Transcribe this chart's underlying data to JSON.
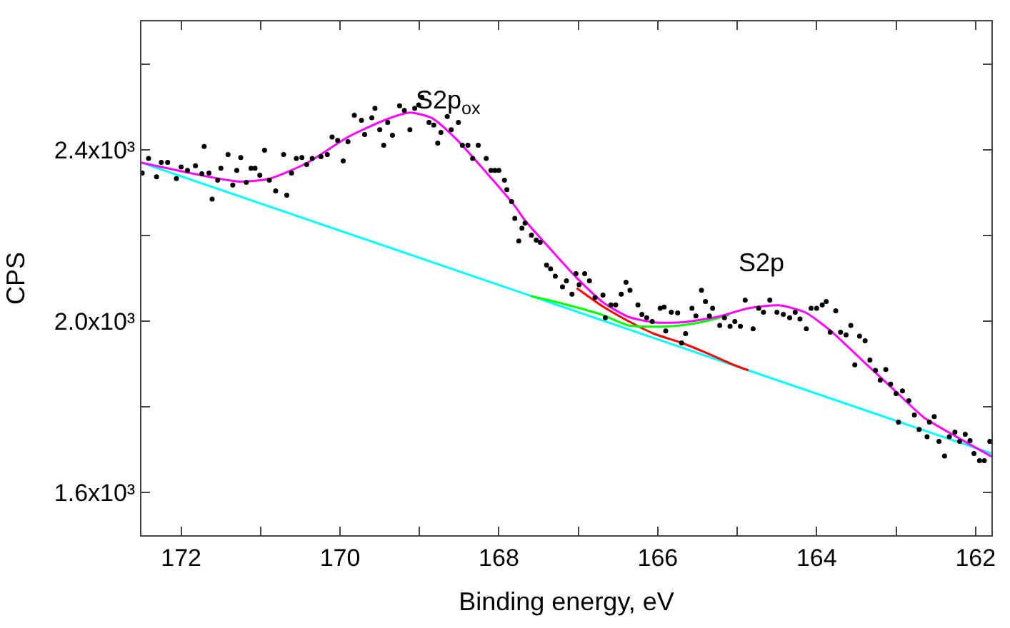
{
  "chart_data": {
    "type": "scatter",
    "xlabel": "Binding energy, eV",
    "ylabel": "CPS",
    "xlim": [
      172.5,
      161.8
    ],
    "ylim": [
      1500,
      2700
    ],
    "xticks": [
      172,
      {
        "value": 171,
        "label": null
      },
      170,
      {
        "value": 169,
        "label": null
      },
      168,
      {
        "value": 167,
        "label": null
      },
      166,
      {
        "value": 165,
        "label": null
      },
      164,
      {
        "value": 163,
        "label": null
      },
      162
    ],
    "yticks": [
      {
        "value": 1600,
        "label": "1.6x10³"
      },
      {
        "value": 1800,
        "label": null
      },
      {
        "value": 2000,
        "label": "2.0x10³"
      },
      {
        "value": 2200,
        "label": null
      },
      {
        "value": 2400,
        "label": "2.4x10³"
      },
      {
        "value": 2600,
        "label": null
      }
    ],
    "annotations": [
      "S2p$_{ox}$",
      "S2p"
    ],
    "series": [
      {
        "type": "line",
        "color": "#00ffff",
        "x": [
          172.5,
          161.8
        ],
        "values": [
          2370,
          1691
        ]
      },
      {
        "type": "line",
        "color": "#ff0000",
        "x": [
          167.02,
          166.69,
          166.37,
          166.04,
          165.71,
          165.39,
          165.06,
          164.86
        ],
        "values": [
          2077,
          2034,
          2000,
          1970,
          1950,
          1926,
          1899,
          1885
        ]
      },
      {
        "type": "line",
        "color": "#00ff00",
        "x": [
          167.6,
          167.35,
          167.02,
          166.69,
          166.37,
          166.04,
          165.71,
          165.39,
          165.1
        ],
        "values": [
          2059,
          2048,
          2032,
          2014,
          1990,
          1987,
          1990,
          2000,
          2015
        ]
      },
      {
        "type": "line",
        "color": "#ff00ff",
        "x": [
          172.5,
          171.27,
          170.88,
          170.41,
          169.9,
          169.43,
          169.12,
          168.84,
          168.53,
          168.2,
          167.8,
          167.67,
          167.35,
          167.02,
          166.69,
          166.37,
          166.04,
          165.71,
          165.25,
          164.86,
          164.47,
          164.14,
          163.82,
          163.43,
          163.04,
          162.65,
          162.25,
          161.8
        ],
        "values": [
          2370,
          2326,
          2333,
          2370,
          2430,
          2470,
          2487,
          2474,
          2424,
          2356,
          2269,
          2235,
          2168,
          2101,
          2044,
          2010,
          1997,
          1997,
          2010,
          2030,
          2037,
          2020,
          1977,
          1909,
          1842,
          1775,
          1731,
          1684
        ]
      },
      {
        "color": "#000000",
        "marker": "circle",
        "x": [
          172.49,
          172.41,
          172.31,
          172.25,
          172.17,
          172.06,
          172.0,
          171.92,
          171.82,
          171.74,
          171.71,
          171.65,
          171.61,
          171.54,
          171.5,
          171.41,
          171.35,
          171.3,
          171.25,
          171.18,
          171.12,
          171.07,
          171.01,
          170.95,
          170.89,
          170.81,
          170.71,
          170.67,
          170.61,
          170.55,
          170.48,
          170.42,
          170.35,
          170.24,
          170.16,
          170.1,
          170.03,
          169.96,
          169.9,
          169.82,
          169.73,
          169.69,
          169.6,
          169.56,
          169.5,
          169.45,
          169.4,
          169.34,
          169.25,
          169.19,
          169.12,
          169.06,
          169.01,
          168.97,
          168.88,
          168.82,
          168.77,
          168.73,
          168.65,
          168.6,
          168.51,
          168.46,
          168.39,
          168.33,
          168.26,
          168.16,
          168.1,
          168.05,
          168.0,
          167.93,
          167.9,
          167.84,
          167.8,
          167.75,
          167.71,
          167.67,
          167.59,
          167.53,
          167.48,
          167.4,
          167.35,
          167.29,
          167.2,
          167.15,
          167.08,
          167.03,
          166.99,
          166.92,
          166.86,
          166.79,
          166.69,
          166.66,
          166.59,
          166.53,
          166.46,
          166.4,
          166.35,
          166.25,
          166.2,
          166.14,
          166.07,
          165.97,
          165.92,
          165.9,
          165.83,
          165.75,
          165.7,
          165.65,
          165.57,
          165.52,
          165.45,
          165.4,
          165.35,
          165.31,
          165.22,
          165.16,
          165.09,
          165.03,
          164.96,
          164.9,
          164.8,
          164.73,
          164.67,
          164.59,
          164.5,
          164.42,
          164.34,
          164.27,
          164.21,
          164.13,
          164.07,
          164.0,
          163.93,
          163.88,
          163.83,
          163.76,
          163.7,
          163.63,
          163.57,
          163.52,
          163.46,
          163.39,
          163.33,
          163.26,
          163.2,
          163.13,
          163.07,
          163.0,
          162.97,
          162.92,
          162.84,
          162.77,
          162.71,
          162.61,
          162.58,
          162.52,
          162.46,
          162.39,
          162.33,
          162.26,
          162.2,
          162.13,
          162.07,
          162.02,
          161.95,
          161.89,
          161.82
        ],
        "values": [
          2346,
          2380,
          2337,
          2371,
          2371,
          2333,
          2360,
          2352,
          2363,
          2344,
          2408,
          2346,
          2285,
          2329,
          2357,
          2389,
          2318,
          2352,
          2382,
          2324,
          2357,
          2357,
          2341,
          2399,
          2329,
          2304,
          2389,
          2294,
          2346,
          2380,
          2382,
          2366,
          2380,
          2384,
          2389,
          2430,
          2422,
          2374,
          2419,
          2481,
          2469,
          2436,
          2475,
          2497,
          2447,
          2411,
          2464,
          2434,
          2503,
          2492,
          2447,
          2497,
          2505,
          2523,
          2464,
          2458,
          2416,
          2441,
          2478,
          2447,
          2464,
          2411,
          2411,
          2380,
          2411,
          2380,
          2352,
          2352,
          2352,
          2329,
          2307,
          2279,
          2240,
          2187,
          2217,
          2229,
          2201,
          2189,
          2184,
          2131,
          2122,
          2105,
          2080,
          2094,
          2063,
          2111,
          2085,
          2111,
          2094,
          2055,
          2061,
          2008,
          2038,
          2038,
          2063,
          2091,
          2072,
          2038,
          2016,
          2008,
          1999,
          2030,
          2033,
          1977,
          2021,
          2019,
          1949,
          1971,
          2030,
          2012,
          2072,
          2046,
          2012,
          2030,
          1990,
          2008,
          1988,
          1999,
          1988,
          2049,
          1982,
          2030,
          2021,
          2049,
          2021,
          2016,
          2008,
          2021,
          2005,
          1982,
          2030,
          2030,
          2038,
          2046,
          1974,
          2024,
          1974,
          1968,
          1990,
          1898,
          1965,
          1954,
          1909,
          1885,
          1862,
          1887,
          1853,
          1831,
          1764,
          1837,
          1814,
          1781,
          1747,
          1730,
          1764,
          1777,
          1719,
          1685,
          1730,
          1741,
          1719,
          1736,
          1721,
          1691,
          1674,
          1674,
          1719
        ]
      }
    ]
  }
}
